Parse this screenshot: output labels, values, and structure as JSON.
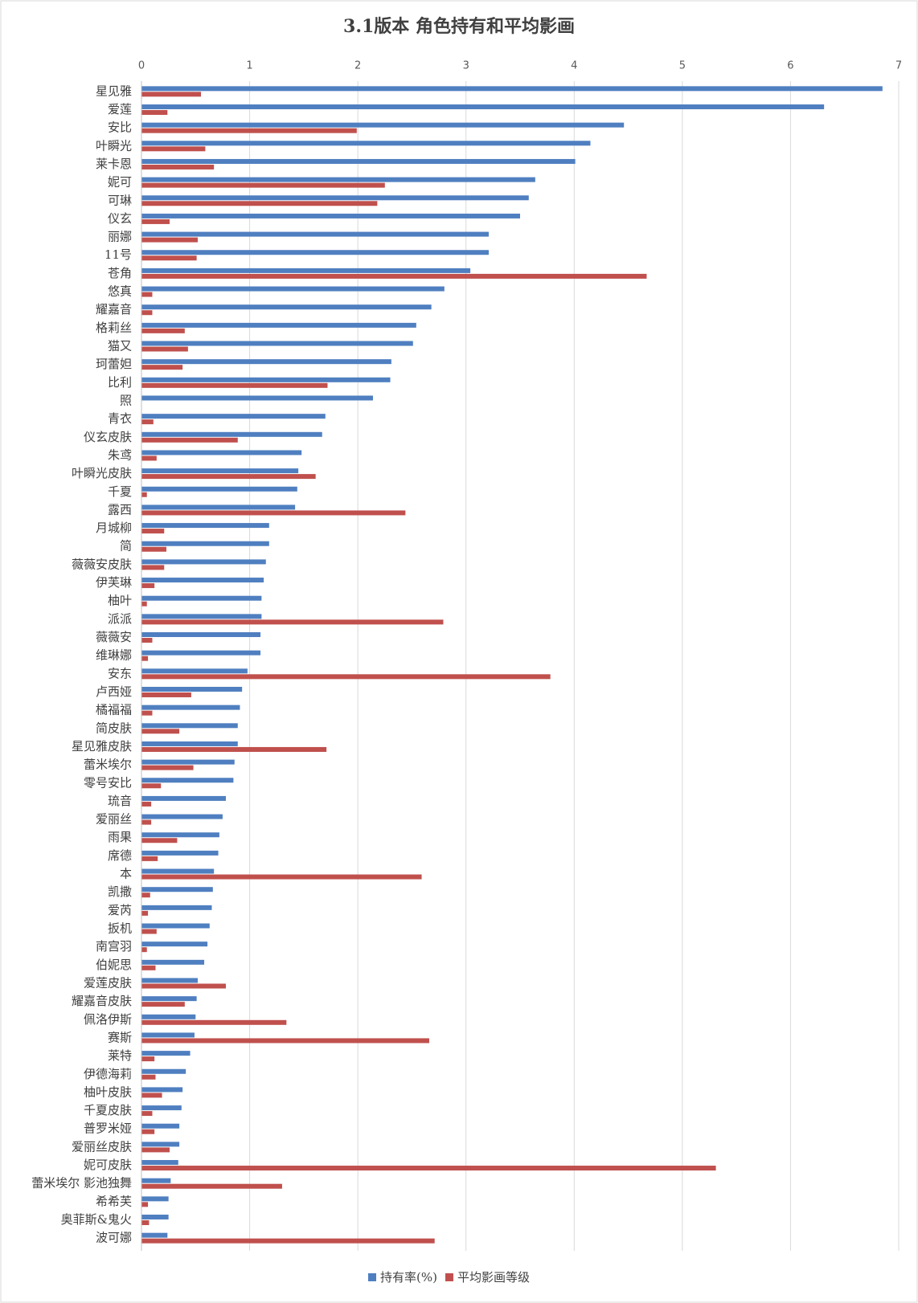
{
  "chart_data": {
    "type": "hbar",
    "title": "3.1版本 角色持有和平均影画",
    "categories": [
      "星见雅",
      "爱莲",
      "安比",
      "叶瞬光",
      "莱卡恩",
      "妮可",
      "可琳",
      "仪玄",
      "丽娜",
      "11号",
      "苍角",
      "悠真",
      "耀嘉音",
      "格莉丝",
      "猫又",
      "珂蕾妲",
      "比利",
      "照",
      "青衣",
      "仪玄皮肤",
      "朱鸢",
      "叶瞬光皮肤",
      "千夏",
      "露西",
      "月城柳",
      "简",
      "薇薇安皮肤",
      "伊芙琳",
      "柚叶",
      "派派",
      "薇薇安",
      "维琳娜",
      "安东",
      "卢西娅",
      "橘福福",
      "简皮肤",
      "星见雅皮肤",
      "蕾米埃尔",
      "零号安比",
      "琉音",
      "爱丽丝",
      "雨果",
      "席德",
      "本",
      "凯撒",
      "爱芮",
      "扳机",
      "南宫羽",
      "伯妮思",
      "爱莲皮肤",
      "耀嘉音皮肤",
      "佩洛伊斯",
      "赛斯",
      "莱特",
      "伊德海莉",
      "柚叶皮肤",
      "千夏皮肤",
      "普罗米娅",
      "爱丽丝皮肤",
      "妮可皮肤",
      "蕾米埃尔 影池独舞",
      "希希芙",
      "奥菲斯&鬼火",
      "波可娜"
    ],
    "series": [
      {
        "name": "持有率(%)",
        "color": "#4f7fc0",
        "values": [
          6.85,
          6.31,
          4.46,
          4.15,
          4.01,
          3.64,
          3.58,
          3.5,
          3.21,
          3.21,
          3.04,
          2.8,
          2.68,
          2.54,
          2.51,
          2.31,
          2.3,
          2.14,
          1.7,
          1.67,
          1.48,
          1.45,
          1.44,
          1.42,
          1.18,
          1.18,
          1.15,
          1.13,
          1.11,
          1.11,
          1.1,
          1.1,
          0.98,
          0.93,
          0.91,
          0.89,
          0.89,
          0.86,
          0.85,
          0.78,
          0.75,
          0.72,
          0.71,
          0.67,
          0.66,
          0.65,
          0.63,
          0.61,
          0.58,
          0.52,
          0.51,
          0.5,
          0.49,
          0.45,
          0.41,
          0.38,
          0.37,
          0.35,
          0.35,
          0.34,
          0.27,
          0.25,
          0.25,
          0.24
        ]
      },
      {
        "name": "平均影画等级",
        "color": "#c0504d",
        "values": [
          0.55,
          0.24,
          1.99,
          0.59,
          0.67,
          2.25,
          2.18,
          0.26,
          0.52,
          0.51,
          4.67,
          0.1,
          0.1,
          0.4,
          0.43,
          0.38,
          1.72,
          null,
          0.11,
          0.89,
          0.14,
          1.61,
          0.05,
          2.44,
          0.21,
          0.23,
          0.21,
          0.12,
          0.05,
          2.79,
          0.1,
          0.06,
          3.78,
          0.46,
          0.1,
          0.35,
          1.71,
          0.48,
          0.18,
          0.09,
          0.09,
          0.33,
          0.15,
          2.59,
          0.08,
          0.06,
          0.14,
          0.05,
          0.13,
          0.78,
          0.4,
          1.34,
          2.66,
          0.12,
          0.13,
          0.19,
          0.1,
          0.12,
          0.26,
          5.31,
          1.3,
          0.06,
          0.07,
          2.71
        ]
      }
    ],
    "xlim": [
      0,
      7
    ],
    "xticks": [
      0,
      1,
      2,
      3,
      4,
      5,
      6,
      7
    ],
    "grid": true,
    "legend": "bottom"
  }
}
